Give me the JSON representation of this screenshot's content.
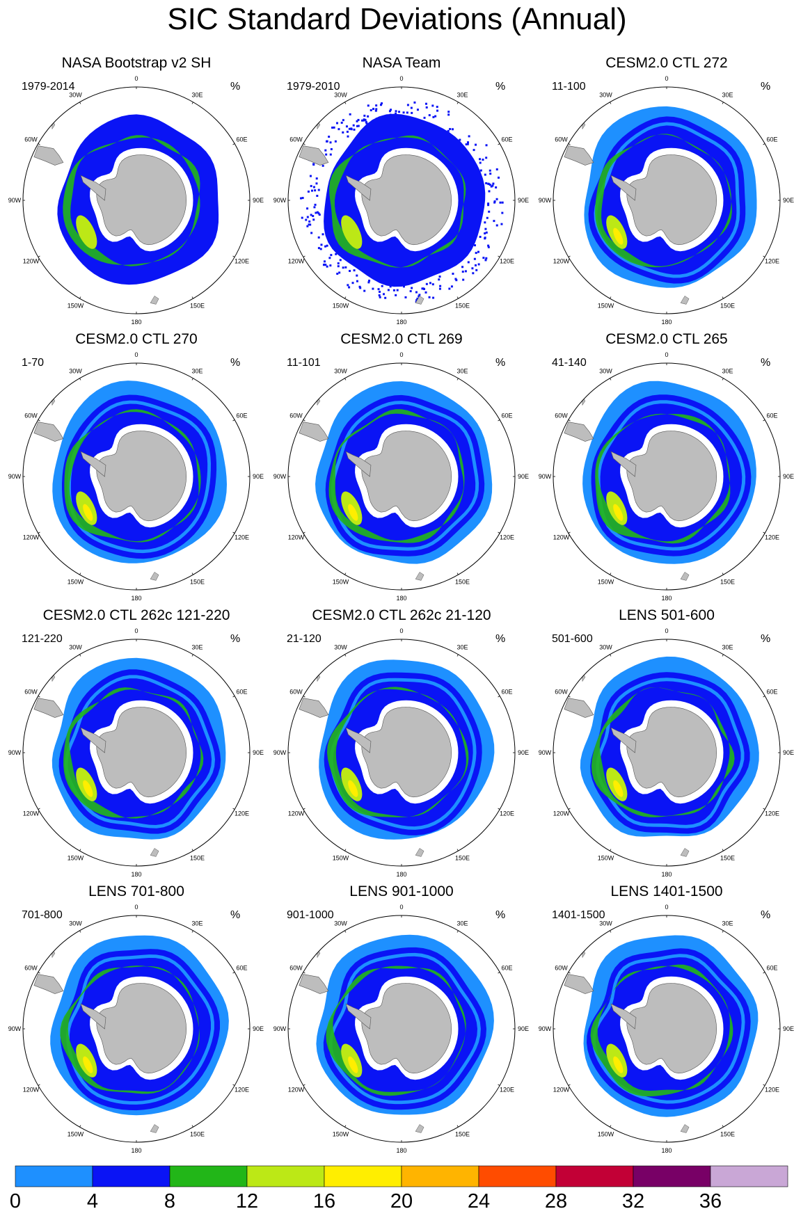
{
  "title": "SIC Standard Deviations (Annual)",
  "colors": {
    "land": "#bdbdbd",
    "ocean": "#ffffff",
    "frame": "#000000"
  },
  "lon_labels": [
    {
      "label": "0",
      "deg": 0
    },
    {
      "label": "30E",
      "deg": 30
    },
    {
      "label": "60E",
      "deg": 60
    },
    {
      "label": "90E",
      "deg": 90
    },
    {
      "label": "120E",
      "deg": 120
    },
    {
      "label": "150E",
      "deg": 150
    },
    {
      "label": "180",
      "deg": 180
    },
    {
      "label": "150W",
      "deg": 210
    },
    {
      "label": "120W",
      "deg": 240
    },
    {
      "label": "90W",
      "deg": 270
    },
    {
      "label": "60W",
      "deg": 300
    },
    {
      "label": "30W",
      "deg": 330
    }
  ],
  "panels": [
    {
      "title": "NASA Bootstrap v2 SH",
      "period": "1979-2014",
      "unit": "%",
      "style": "obs"
    },
    {
      "title": "NASA Team",
      "period": "1979-2010",
      "unit": "%",
      "style": "obs2"
    },
    {
      "title": "CESM2.0 CTL 272",
      "period": "11-100",
      "unit": "%",
      "style": "model"
    },
    {
      "title": "CESM2.0 CTL 270",
      "period": "1-70",
      "unit": "%",
      "style": "model"
    },
    {
      "title": "CESM2.0 CTL 269",
      "period": "11-101",
      "unit": "%",
      "style": "model"
    },
    {
      "title": "CESM2.0 CTL 265",
      "period": "41-140",
      "unit": "%",
      "style": "model"
    },
    {
      "title": "CESM2.0 CTL 262c 121-220",
      "period": "121-220",
      "unit": "%",
      "style": "model"
    },
    {
      "title": "CESM2.0 CTL 262c 21-120",
      "period": "21-120",
      "unit": "%",
      "style": "model"
    },
    {
      "title": "LENS 501-600",
      "period": "501-600",
      "unit": "%",
      "style": "model"
    },
    {
      "title": "LENS 701-800",
      "period": "701-800",
      "unit": "%",
      "style": "model"
    },
    {
      "title": "LENS 901-1000",
      "period": "901-1000",
      "unit": "%",
      "style": "model"
    },
    {
      "title": "LENS 1401-1500",
      "period": "1401-1500",
      "unit": "%",
      "style": "model"
    }
  ],
  "colorbar": {
    "ticks": [
      "0",
      "4",
      "8",
      "12",
      "16",
      "20",
      "24",
      "28",
      "32",
      "36"
    ],
    "colors": [
      "#1e90ff",
      "#0a14f5",
      "#22b618",
      "#bce816",
      "#ffee00",
      "#ffb400",
      "#ff4c00",
      "#c20036",
      "#780066",
      "#c9a7d6"
    ]
  }
}
